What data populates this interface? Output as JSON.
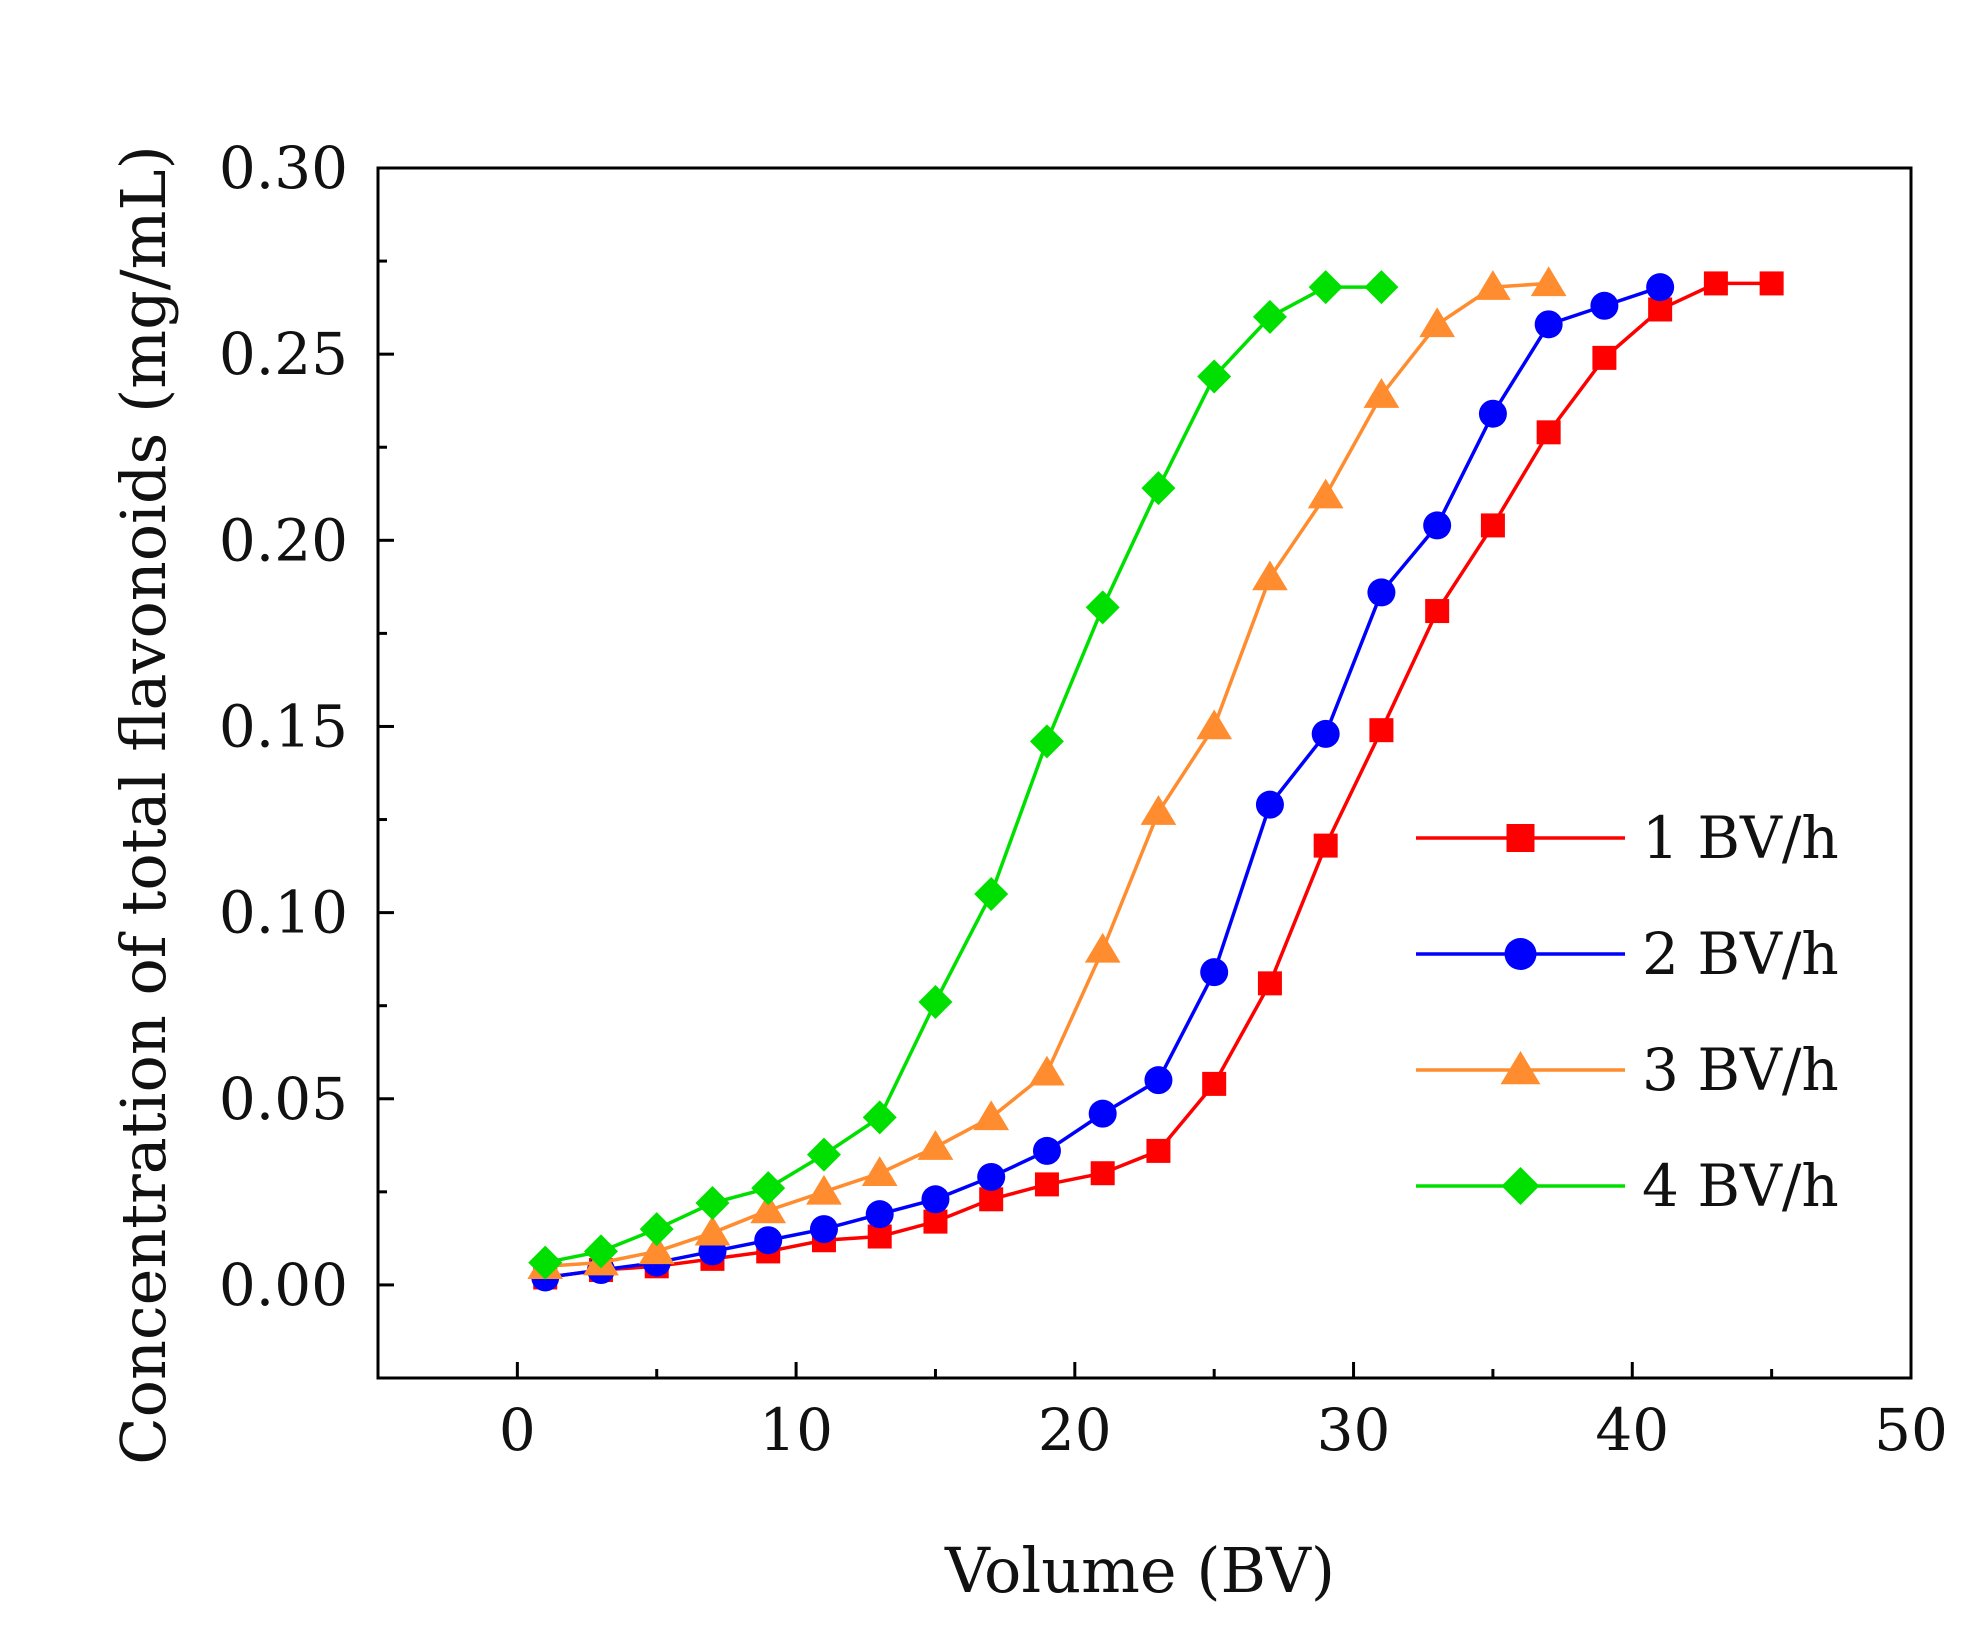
{
  "chart_data": {
    "type": "line",
    "title": "",
    "xlabel": "Volume (BV)",
    "ylabel": "Concentration of total flavonoids (mg/mL)",
    "xlim": [
      -5,
      50
    ],
    "ylim": [
      -0.025,
      0.3
    ],
    "xticks": [
      "0",
      "10",
      "20",
      "30",
      "40",
      "50"
    ],
    "yticks": [
      "0.00",
      "0.05",
      "0.10",
      "0.15",
      "0.20",
      "0.25",
      "0.30"
    ],
    "grid": false,
    "legend_position": "right",
    "series": [
      {
        "name": "1 BV/h",
        "color": "#ff0000",
        "marker": "square",
        "x": [
          1,
          3,
          5,
          7,
          9,
          11,
          13,
          15,
          17,
          19,
          21,
          23,
          25,
          27,
          29,
          31,
          33,
          35,
          37,
          39,
          41,
          43,
          45
        ],
        "values": [
          0.002,
          0.004,
          0.005,
          0.007,
          0.009,
          0.012,
          0.013,
          0.017,
          0.023,
          0.027,
          0.03,
          0.036,
          0.054,
          0.081,
          0.118,
          0.149,
          0.181,
          0.204,
          0.229,
          0.249,
          0.262,
          0.269,
          0.269
        ]
      },
      {
        "name": "2 BV/h",
        "color": "#0000ff",
        "marker": "circle",
        "x": [
          1,
          3,
          5,
          7,
          9,
          11,
          13,
          15,
          17,
          19,
          21,
          23,
          25,
          27,
          29,
          31,
          33,
          35,
          37,
          39,
          41
        ],
        "values": [
          0.002,
          0.004,
          0.006,
          0.009,
          0.012,
          0.015,
          0.019,
          0.023,
          0.029,
          0.036,
          0.046,
          0.055,
          0.084,
          0.129,
          0.148,
          0.186,
          0.204,
          0.234,
          0.258,
          0.263,
          0.268
        ]
      },
      {
        "name": "3 BV/h",
        "color": "#ff8c2e",
        "marker": "triangle",
        "x": [
          1,
          3,
          5,
          7,
          9,
          11,
          13,
          15,
          17,
          19,
          21,
          23,
          25,
          27,
          29,
          31,
          33,
          35,
          37
        ],
        "values": [
          0.005,
          0.006,
          0.009,
          0.014,
          0.02,
          0.025,
          0.03,
          0.037,
          0.045,
          0.057,
          0.09,
          0.127,
          0.15,
          0.19,
          0.212,
          0.239,
          0.258,
          0.268,
          0.269
        ]
      },
      {
        "name": "4 BV/h",
        "color": "#00e000",
        "marker": "diamond",
        "x": [
          1,
          3,
          5,
          7,
          9,
          11,
          13,
          15,
          17,
          19,
          21,
          23,
          25,
          27,
          29,
          31
        ],
        "values": [
          0.006,
          0.009,
          0.015,
          0.022,
          0.026,
          0.035,
          0.045,
          0.076,
          0.105,
          0.146,
          0.182,
          0.214,
          0.244,
          0.26,
          0.268,
          0.268
        ]
      }
    ]
  }
}
